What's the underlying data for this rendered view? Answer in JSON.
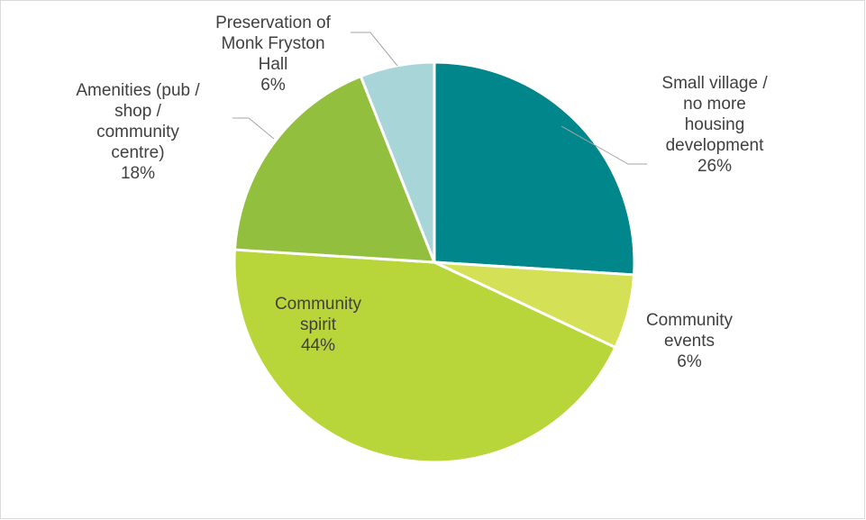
{
  "chart_data": {
    "type": "pie",
    "title": "",
    "legend": "none",
    "slices": [
      {
        "label": [
          "Small village /",
          "no more",
          "housing",
          "development"
        ],
        "value": 26,
        "value_label": "26%",
        "color": "#00868B"
      },
      {
        "label": [
          "Community",
          "events"
        ],
        "value": 6,
        "value_label": "6%",
        "color": "#D4E157"
      },
      {
        "label": [
          "Community",
          "spirit"
        ],
        "value": 44,
        "value_label": "44%",
        "color": "#B8D53A"
      },
      {
        "label": [
          "Amenities (pub /",
          "shop /",
          "community",
          "centre)"
        ],
        "value": 18,
        "value_label": "18%",
        "color": "#92C03E"
      },
      {
        "label": [
          "Preservation of",
          "Monk Fryston",
          "Hall"
        ],
        "value": 6,
        "value_label": "6%",
        "color": "#A8D5D8"
      }
    ]
  }
}
